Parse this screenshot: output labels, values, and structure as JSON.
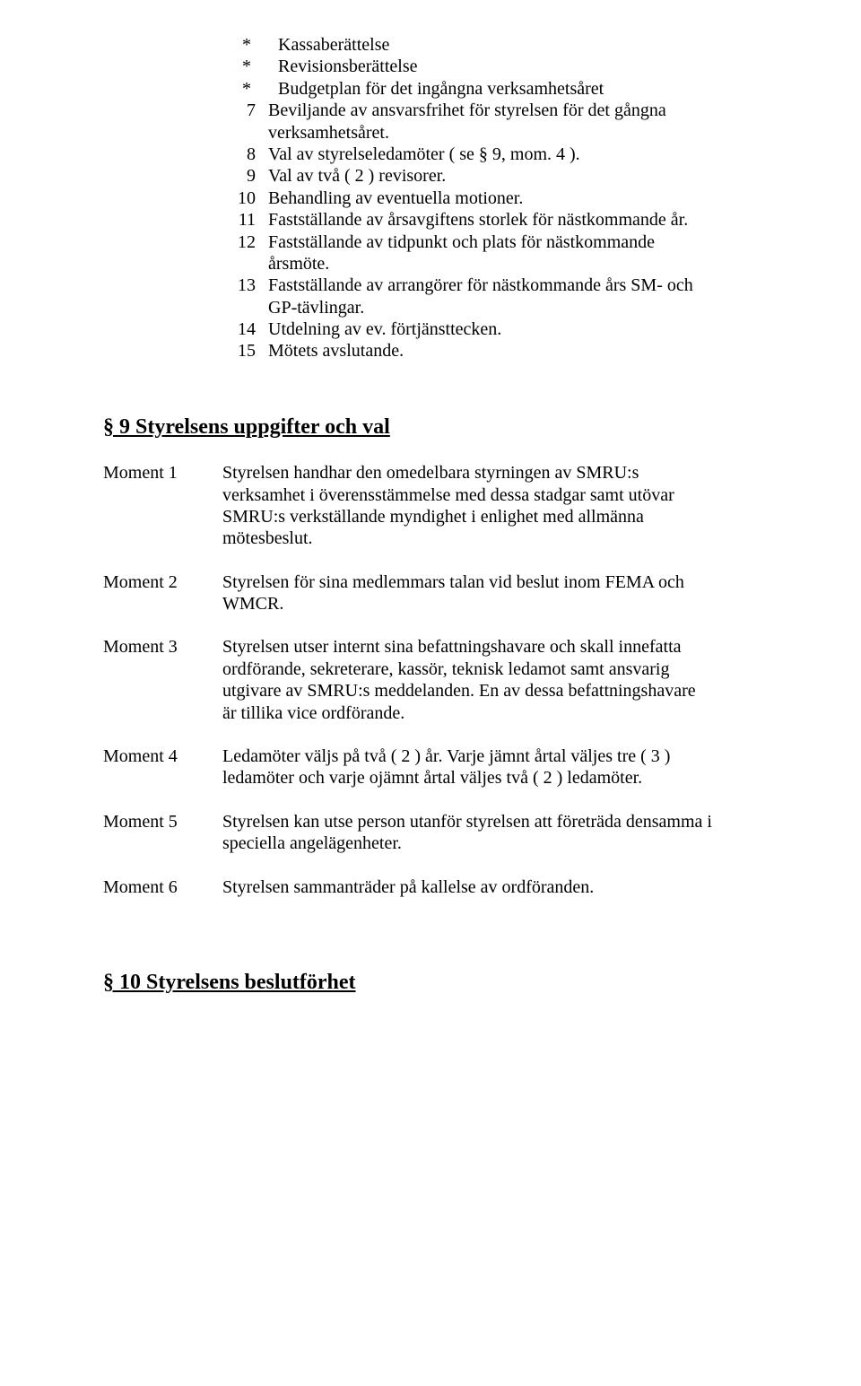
{
  "list": {
    "star1": {
      "bullet": "*",
      "text": "Kassaberättelse"
    },
    "star2": {
      "bullet": "*",
      "text": "Revisionsberättelse"
    },
    "star3": {
      "bullet": "*",
      "text": "Budgetplan för det ingångna verksamhetsåret"
    },
    "item7": {
      "num": "7",
      "text": "Beviljande av ansvarsfrihet för styrelsen för det gångna verksamhetsåret."
    },
    "item8": {
      "num": "8",
      "text": "Val av styrelseledamöter  ( se  § 9,  mom. 4 )."
    },
    "item9": {
      "num": "9",
      "text": "Val av två ( 2 ) revisorer."
    },
    "item10": {
      "num": "10",
      "text": "Behandling av eventuella motioner."
    },
    "item11": {
      "num": "11",
      "text": "Fastställande av årsavgiftens storlek för nästkommande år."
    },
    "item12": {
      "num": "12",
      "text": "Fastställande av tidpunkt och plats för nästkommande årsmöte."
    },
    "item13": {
      "num": "13",
      "text": "Fastställande av arrangörer för nästkommande års SM- och GP-tävlingar."
    },
    "item14": {
      "num": "14",
      "text": "Utdelning av ev. förtjänsttecken."
    },
    "item15": {
      "num": "15",
      "text": "Mötets avslutande."
    }
  },
  "section9": {
    "heading": "§ 9    Styrelsens uppgifter och val",
    "m1": {
      "label": "Moment  1",
      "text": "Styrelsen handhar den omedelbara styrningen av SMRU:s verksamhet i överensstämmelse med dessa stadgar samt utövar SMRU:s verkställande myndighet i enlighet med allmänna mötesbeslut."
    },
    "m2": {
      "label": "Moment  2",
      "text": "Styrelsen för sina medlemmars talan vid beslut inom FEMA och WMCR."
    },
    "m3": {
      "label": "Moment  3",
      "text": "Styrelsen utser internt sina befattningshavare och skall innefatta ordförande,  sekreterare,  kassör,  teknisk ledamot samt ansvarig utgivare av SMRU:s meddelanden.  En av dessa befattningshavare är tillika vice ordförande."
    },
    "m4": {
      "label": "Moment  4",
      "text": "Ledamöter väljs på två ( 2 ) år.  Varje jämnt årtal väljes tre ( 3 ) ledamöter och varje ojämnt årtal väljes två ( 2 ) ledamöter."
    },
    "m5": {
      "label": "Moment  5",
      "text": "Styrelsen kan utse person utanför styrelsen att företräda densamma i speciella angelägenheter."
    },
    "m6": {
      "label": "Moment  6",
      "text": "Styrelsen sammanträder på kallelse av ordföranden."
    }
  },
  "section10": {
    "heading": "§ 10  Styrelsens beslutförhet"
  }
}
